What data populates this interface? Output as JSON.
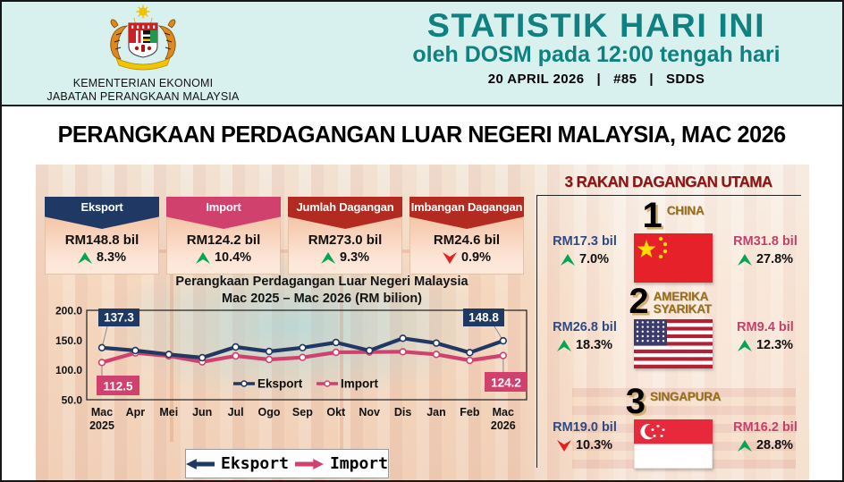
{
  "header": {
    "title": "STATISTIK HARI INI",
    "subtitle": "oleh DOSM pada 12:00 tengah hari",
    "date": "20 APRIL 2026",
    "issue": "#85",
    "standard": "SDDS",
    "separator": "|",
    "ministry_line1": "KEMENTERIAN EKONOMI",
    "ministry_line2": "JABATAN PERANGKAAN MALAYSIA"
  },
  "page_title": "PERANGKAAN PERDAGANGAN LUAR NEGERI MALAYSIA, MAC 2026",
  "stat_cards": [
    {
      "label": "Eksport",
      "value": "RM148.8 bil",
      "change": "8.3%",
      "direction": "up",
      "header_color": "#1f3864"
    },
    {
      "label": "Import",
      "value": "RM124.2 bil",
      "change": "10.4%",
      "direction": "up",
      "header_color": "#d1416e"
    },
    {
      "label": "Jumlah Dagangan",
      "value": "RM273.0 bil",
      "change": "9.3%",
      "direction": "up",
      "header_color": "#b32b20"
    },
    {
      "label": "Imbangan Dagangan",
      "value": "RM24.6 bil",
      "change": "0.9%",
      "direction": "down",
      "header_color": "#b32b20"
    }
  ],
  "chart_data": {
    "type": "line",
    "title_line1": "Perangkaan Perdagangan Luar Negeri Malaysia",
    "title_line2": "Mac 2025 – Mac 2026 (RM bilion)",
    "categories": [
      {
        "m": "Mac",
        "sub": "2025"
      },
      {
        "m": "Apr",
        "sub": ""
      },
      {
        "m": "Mei",
        "sub": ""
      },
      {
        "m": "Jun",
        "sub": ""
      },
      {
        "m": "Jul",
        "sub": ""
      },
      {
        "m": "Ogo",
        "sub": ""
      },
      {
        "m": "Sep",
        "sub": ""
      },
      {
        "m": "Okt",
        "sub": ""
      },
      {
        "m": "Nov",
        "sub": ""
      },
      {
        "m": "Dis",
        "sub": ""
      },
      {
        "m": "Jan",
        "sub": ""
      },
      {
        "m": "Feb",
        "sub": ""
      },
      {
        "m": "Mac",
        "sub": "2026"
      }
    ],
    "y_ticks": [
      "200.0",
      "150.0",
      "100.0",
      "50.0"
    ],
    "ylim": [
      50,
      200
    ],
    "grid": false,
    "legend_position": "inside-bottom",
    "series": [
      {
        "name": "Eksport",
        "color": "#1f3864",
        "values": [
          137.3,
          132.5,
          126.0,
          120.5,
          138.5,
          131.0,
          137.3,
          146.0,
          132.5,
          153.0,
          145.0,
          129.0,
          148.8
        ],
        "start_label": "137.3",
        "end_label": "148.8"
      },
      {
        "name": "Import",
        "color": "#d1416e",
        "values": [
          112.5,
          128.5,
          123.5,
          113.5,
          123.5,
          117.5,
          121.0,
          129.5,
          130.0,
          130.5,
          126.0,
          116.0,
          124.2
        ],
        "start_label": "112.5",
        "end_label": "124.2"
      }
    ]
  },
  "partners": {
    "title": "3 RAKAN DAGANGAN UTAMA",
    "items": [
      {
        "rank": "1",
        "name": "CHINA",
        "flag": "china",
        "left_value": "RM17.3 bil",
        "left_change": "7.0%",
        "left_direction": "up",
        "right_value": "RM31.8 bil",
        "right_change": "27.8%",
        "right_direction": "up"
      },
      {
        "rank": "2",
        "name": "AMERIKA SYARIKAT",
        "flag": "usa",
        "left_value": "RM26.8 bil",
        "left_change": "18.3%",
        "left_direction": "up",
        "right_value": "RM9.4 bil",
        "right_change": "12.3%",
        "right_direction": "up"
      },
      {
        "rank": "3",
        "name": "SINGAPURA",
        "flag": "singapore",
        "left_value": "RM19.0 bil",
        "left_change": "10.3%",
        "left_direction": "down",
        "right_value": "RM16.2 bil",
        "right_change": "28.8%",
        "right_direction": "up"
      }
    ]
  },
  "colors": {
    "teal": "#0e8180",
    "navy": "#1f3864",
    "pink": "#d1416e",
    "red_header": "#b32b20",
    "green_up": "#00a651",
    "red_down": "#e8201d",
    "partner_title_red": "#8e1313",
    "gold_name": "#9a6f15",
    "header_bg": "#d9f1ee"
  }
}
